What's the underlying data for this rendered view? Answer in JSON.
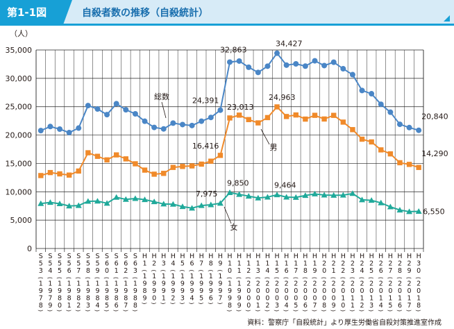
{
  "header": {
    "figure_number": "第1-1図",
    "title": "自殺者数の推移（自殺統計）"
  },
  "colors": {
    "total": "#4a86c6",
    "male": "#f08a2a",
    "female": "#20a99a",
    "header_blue": "#17a0d6",
    "header_light": "#d7ebf7"
  },
  "source": "資料：警察庁「自殺統計」より厚生労働省自殺対策推進室作成",
  "chart_data": {
    "type": "line",
    "title": "自殺者数の推移（自殺統計）",
    "ylabel": "（人）",
    "xlabel": "",
    "ylim": [
      0,
      35000
    ],
    "yticks": [
      0,
      5000,
      10000,
      15000,
      20000,
      25000,
      30000,
      35000
    ],
    "ytick_labels": [
      "0",
      "5,000",
      "10,000",
      "15,000",
      "20,000",
      "25,000",
      "30,000",
      "35,000"
    ],
    "grid": true,
    "categories": [
      {
        "era": "S53",
        "year": "1978"
      },
      {
        "era": "S54",
        "year": "1979"
      },
      {
        "era": "S55",
        "year": "1980"
      },
      {
        "era": "S56",
        "year": "1981"
      },
      {
        "era": "S57",
        "year": "1982"
      },
      {
        "era": "S58",
        "year": "1983"
      },
      {
        "era": "S59",
        "year": "1984"
      },
      {
        "era": "S60",
        "year": "1985"
      },
      {
        "era": "S61",
        "year": "1986"
      },
      {
        "era": "S62",
        "year": "1987"
      },
      {
        "era": "S63",
        "year": "1988"
      },
      {
        "era": "H1",
        "year": "1989"
      },
      {
        "era": "H2",
        "year": "1990"
      },
      {
        "era": "H3",
        "year": "1991"
      },
      {
        "era": "H4",
        "year": "1992"
      },
      {
        "era": "H5",
        "year": "1993"
      },
      {
        "era": "H6",
        "year": "1994"
      },
      {
        "era": "H7",
        "year": "1995"
      },
      {
        "era": "H8",
        "year": "1996"
      },
      {
        "era": "H9",
        "year": "1997"
      },
      {
        "era": "H10",
        "year": "1998"
      },
      {
        "era": "H11",
        "year": "1999"
      },
      {
        "era": "H12",
        "year": "2000"
      },
      {
        "era": "H13",
        "year": "2001"
      },
      {
        "era": "H14",
        "year": "2002"
      },
      {
        "era": "H15",
        "year": "2003"
      },
      {
        "era": "H16",
        "year": "2004"
      },
      {
        "era": "H17",
        "year": "2005"
      },
      {
        "era": "H18",
        "year": "2006"
      },
      {
        "era": "H19",
        "year": "2007"
      },
      {
        "era": "H20",
        "year": "2008"
      },
      {
        "era": "H21",
        "year": "2009"
      },
      {
        "era": "H22",
        "year": "2010"
      },
      {
        "era": "H23",
        "year": "2011"
      },
      {
        "era": "H24",
        "year": "2012"
      },
      {
        "era": "H25",
        "year": "2013"
      },
      {
        "era": "H26",
        "year": "2014"
      },
      {
        "era": "H27",
        "year": "2015"
      },
      {
        "era": "H28",
        "year": "2016"
      },
      {
        "era": "H29",
        "year": "2017"
      },
      {
        "era": "H30",
        "year": "2018"
      }
    ],
    "series": [
      {
        "key": "total",
        "name": "総数",
        "marker": "circle",
        "values": [
          20788,
          21503,
          21048,
          20434,
          21228,
          25202,
          24596,
          23599,
          25524,
          24460,
          23742,
          22436,
          21346,
          21084,
          22104,
          21851,
          21679,
          22445,
          23104,
          24391,
          32863,
          33048,
          31957,
          31042,
          32143,
          34427,
          32325,
          32552,
          32155,
          33093,
          32249,
          32845,
          31690,
          30651,
          27858,
          27283,
          25427,
          24025,
          21897,
          21321,
          20840
        ]
      },
      {
        "key": "male",
        "name": "男",
        "marker": "square",
        "values": [
          12859,
          13386,
          13155,
          12942,
          13654,
          16876,
          16251,
          15624,
          16499,
          15802,
          14934,
          13818,
          13102,
          13242,
          14296,
          14468,
          14560,
          14874,
          15393,
          16416,
          23013,
          23512,
          22727,
          22144,
          23080,
          24963,
          23272,
          23540,
          22813,
          23478,
          22831,
          23472,
          22283,
          20955,
          19273,
          18787,
          17386,
          16681,
          15121,
          14826,
          14290
        ]
      },
      {
        "key": "female",
        "name": "女",
        "marker": "triangle",
        "values": [
          7929,
          8117,
          7893,
          7492,
          7574,
          8326,
          8345,
          7975,
          9025,
          8658,
          8808,
          8618,
          8244,
          7842,
          7808,
          7383,
          7119,
          7571,
          7711,
          7975,
          9850,
          9536,
          9230,
          8898,
          9063,
          9464,
          9053,
          9012,
          9342,
          9615,
          9418,
          9373,
          9407,
          9696,
          8585,
          8496,
          8041,
          7344,
          6776,
          6495,
          6550
        ]
      }
    ],
    "data_labels": [
      {
        "series": "total",
        "category": "H9",
        "text": "24,391"
      },
      {
        "series": "total",
        "category": "H10",
        "text": "32,863"
      },
      {
        "series": "total",
        "category": "H15",
        "text": "34,427"
      },
      {
        "series": "total",
        "category": "H30",
        "text": "20,840"
      },
      {
        "series": "male",
        "category": "H9",
        "text": "16,416"
      },
      {
        "series": "male",
        "category": "H10",
        "text": "23,013"
      },
      {
        "series": "male",
        "category": "H15",
        "text": "24,963"
      },
      {
        "series": "male",
        "category": "H30",
        "text": "14,290"
      },
      {
        "series": "female",
        "category": "H9",
        "text": "7,975"
      },
      {
        "series": "female",
        "category": "H10",
        "text": "9,850"
      },
      {
        "series": "female",
        "category": "H15",
        "text": "9,464"
      },
      {
        "series": "female",
        "category": "H30",
        "text": "6,550"
      }
    ],
    "series_annotations": [
      {
        "series": "total",
        "text": "総数"
      },
      {
        "series": "male",
        "text": "男"
      },
      {
        "series": "female",
        "text": "女"
      }
    ]
  }
}
